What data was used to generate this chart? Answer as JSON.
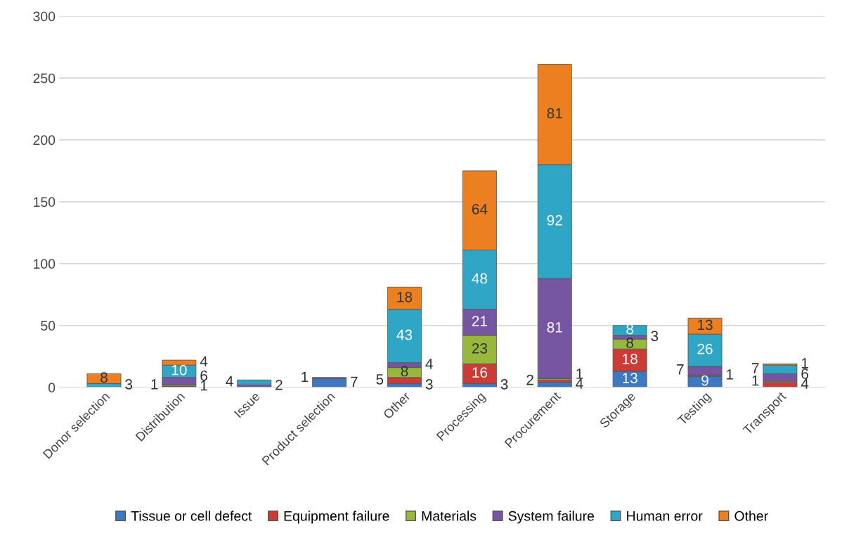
{
  "chart_data": {
    "type": "bar",
    "stacked": true,
    "categories": [
      "Donor selection",
      "Distribution",
      "Issue",
      "Product selection",
      "Other",
      "Processing",
      "Procurement",
      "Storage",
      "Testing",
      "Transport"
    ],
    "series": [
      {
        "name": "Tissue or cell defect",
        "color": "#3d78c2",
        "values": [
          null,
          null,
          null,
          7,
          3,
          3,
          4,
          13,
          9,
          null
        ]
      },
      {
        "name": "Equipment failure",
        "color": "#cc3b36",
        "values": [
          null,
          1,
          null,
          null,
          5,
          16,
          2,
          18,
          1,
          4
        ]
      },
      {
        "name": "Materials",
        "color": "#98b83c",
        "values": [
          null,
          1,
          null,
          null,
          8,
          23,
          1,
          8,
          null,
          1
        ]
      },
      {
        "name": "System failure",
        "color": "#7655a3",
        "values": [
          null,
          6,
          2,
          1,
          4,
          21,
          81,
          3,
          7,
          6
        ]
      },
      {
        "name": "Human error",
        "color": "#2fa6c6",
        "values": [
          3,
          10,
          4,
          null,
          43,
          48,
          92,
          8,
          26,
          7
        ]
      },
      {
        "name": "Other",
        "color": "#ec7f1f",
        "values": [
          8,
          4,
          null,
          null,
          18,
          64,
          81,
          null,
          13,
          1
        ]
      }
    ],
    "ylim": [
      0,
      300
    ],
    "yticks": [
      0,
      50,
      100,
      150,
      200,
      250,
      300
    ],
    "grid": "y",
    "legend": "bottom",
    "data_labels": true
  }
}
